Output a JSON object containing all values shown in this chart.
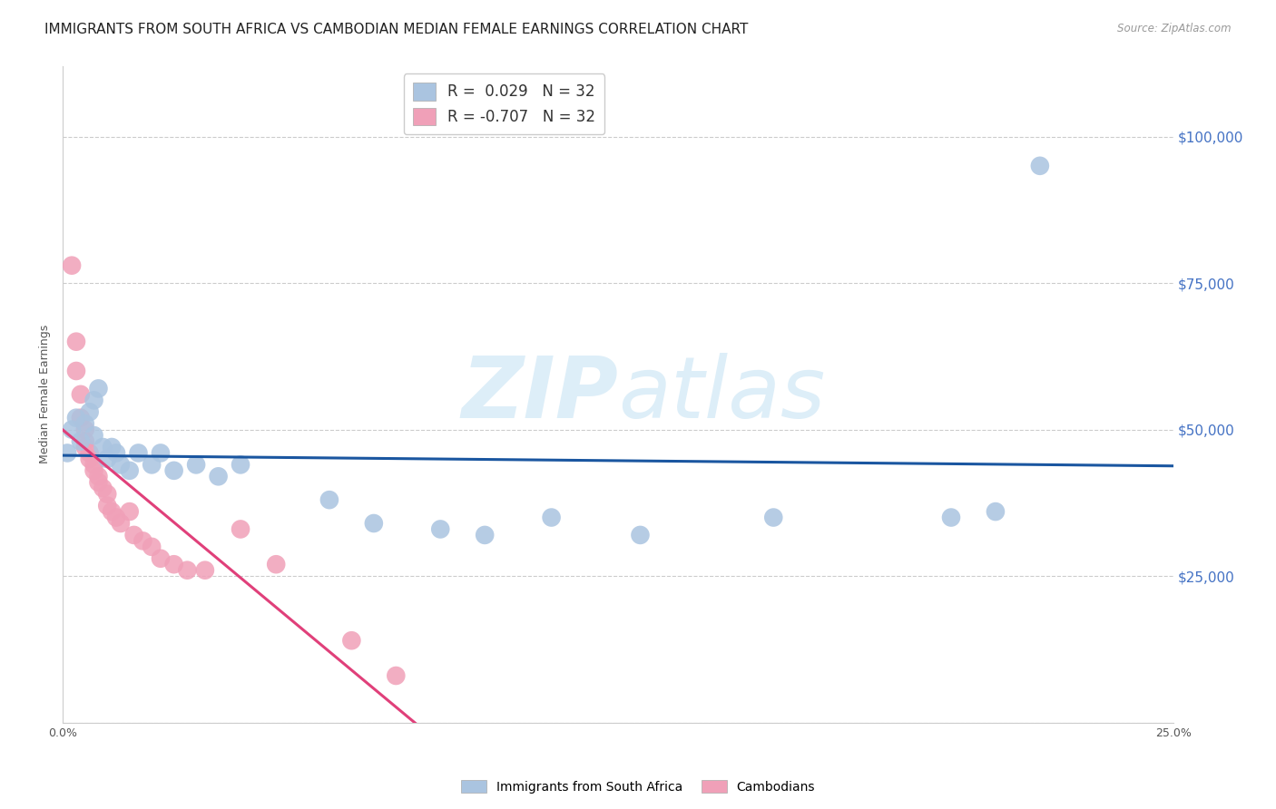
{
  "title": "IMMIGRANTS FROM SOUTH AFRICA VS CAMBODIAN MEDIAN FEMALE EARNINGS CORRELATION CHART",
  "source": "Source: ZipAtlas.com",
  "ylabel": "Median Female Earnings",
  "xlim": [
    0.0,
    0.25
  ],
  "ylim": [
    0,
    112000
  ],
  "r_south_africa": 0.029,
  "n_south_africa": 32,
  "r_cambodian": -0.707,
  "n_cambodian": 32,
  "blue_color": "#aac4e0",
  "blue_line_color": "#1a56a0",
  "pink_color": "#f0a0b8",
  "pink_line_color": "#e0407a",
  "watermark_color": "#ddeef8",
  "background_color": "#ffffff",
  "title_fontsize": 11,
  "axis_label_fontsize": 9,
  "tick_fontsize": 9,
  "sa_x": [
    0.001,
    0.002,
    0.003,
    0.004,
    0.005,
    0.006,
    0.007,
    0.007,
    0.008,
    0.009,
    0.01,
    0.011,
    0.012,
    0.013,
    0.015,
    0.017,
    0.02,
    0.022,
    0.025,
    0.03,
    0.035,
    0.04,
    0.06,
    0.07,
    0.085,
    0.095,
    0.11,
    0.13,
    0.16,
    0.2,
    0.21,
    0.22
  ],
  "sa_y": [
    46000,
    50000,
    52000,
    48000,
    51000,
    53000,
    55000,
    49000,
    57000,
    47000,
    45000,
    47000,
    46000,
    44000,
    43000,
    46000,
    44000,
    46000,
    43000,
    44000,
    42000,
    44000,
    38000,
    34000,
    33000,
    32000,
    35000,
    32000,
    35000,
    35000,
    36000,
    95000
  ],
  "cam_x": [
    0.002,
    0.003,
    0.003,
    0.004,
    0.004,
    0.005,
    0.005,
    0.005,
    0.006,
    0.006,
    0.007,
    0.007,
    0.008,
    0.008,
    0.009,
    0.01,
    0.01,
    0.011,
    0.012,
    0.013,
    0.015,
    0.016,
    0.018,
    0.02,
    0.022,
    0.025,
    0.028,
    0.032,
    0.04,
    0.048,
    0.065,
    0.075
  ],
  "cam_y": [
    78000,
    65000,
    60000,
    56000,
    52000,
    50000,
    48000,
    47000,
    46000,
    45000,
    44000,
    43000,
    42000,
    41000,
    40000,
    39000,
    37000,
    36000,
    35000,
    34000,
    36000,
    32000,
    31000,
    30000,
    28000,
    27000,
    26000,
    26000,
    33000,
    27000,
    14000,
    8000
  ]
}
